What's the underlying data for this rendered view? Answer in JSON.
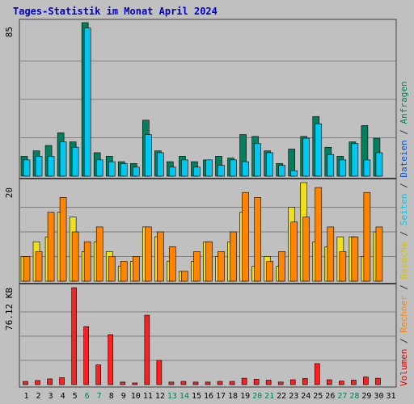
{
  "chart_data": {
    "type": "bar",
    "title": "Tages-Statistik im Monat April 2024",
    "categories": [
      "1",
      "2",
      "3",
      "4",
      "5",
      "6",
      "7",
      "8",
      "9",
      "10",
      "11",
      "12",
      "13",
      "14",
      "15",
      "16",
      "17",
      "18",
      "19",
      "20",
      "21",
      "22",
      "23",
      "24",
      "25",
      "26",
      "27",
      "28",
      "29",
      "30",
      "31"
    ],
    "weekend_days": [
      "6",
      "7",
      "13",
      "14",
      "20",
      "21",
      "27",
      "28"
    ],
    "panels": [
      {
        "id": "top",
        "tick_label": "85",
        "ylim": [
          0,
          85
        ],
        "series": [
          {
            "name": "Anfragen",
            "color": "#00805c",
            "values": [
              11,
              14,
              17,
              24,
              19,
              85,
              13,
              11,
              8,
              7,
              31,
              14,
              8,
              11,
              8,
              9,
              11,
              10,
              23,
              22,
              14,
              7,
              15,
              22,
              33,
              16,
              11,
              19,
              28,
              21,
              0
            ]
          },
          {
            "name": "Dateien",
            "color": "#00c8f0",
            "values": [
              9,
              11,
              11,
              19,
              16,
              82,
              9,
              8,
              7,
              5,
              23,
              13,
              5,
              9,
              5,
              9,
              6,
              9,
              8,
              18,
              13,
              6,
              3,
              21,
              29,
              12,
              9,
              18,
              9,
              13,
              0
            ]
          }
        ]
      },
      {
        "id": "mid",
        "tick_label": "20",
        "ylim": [
          0,
          20
        ],
        "series": [
          {
            "name": "Seiten",
            "color": "#f0e01c",
            "values": [
              5,
              8,
              9,
              14,
              13,
              6,
              8,
              6,
              3,
              4,
              11,
              9,
              4,
              2,
              4,
              8,
              5,
              8,
              14,
              3,
              5,
              3,
              15,
              20,
              8,
              7,
              9,
              9,
              5,
              10,
              0
            ]
          },
          {
            "name": "Besuche",
            "color": "#ff8400",
            "values": [
              5,
              6,
              14,
              17,
              10,
              8,
              11,
              5,
              4,
              5,
              11,
              10,
              7,
              2,
              6,
              8,
              6,
              10,
              18,
              17,
              4,
              6,
              12,
              13,
              19,
              11,
              6,
              9,
              18,
              11,
              0
            ]
          }
        ]
      },
      {
        "id": "bottom",
        "tick_label": "76.12 KB",
        "ylim": [
          0,
          76.12
        ],
        "series": [
          {
            "name": "Volumen",
            "color": "#ff1f1f",
            "values": [
              2.5,
              3.2,
              4.5,
              5.5,
              76.1,
              45.5,
              15.5,
              39.2,
              2.0,
              1.3,
              54.5,
              19.0,
              2.0,
              2.5,
              2.0,
              2.0,
              2.5,
              2.5,
              5.0,
              4.2,
              3.5,
              2.0,
              3.8,
              4.8,
              16.5,
              3.8,
              2.8,
              3.5,
              6.0,
              5.0,
              0
            ]
          }
        ]
      }
    ],
    "right_legend": [
      {
        "text": "Volumen",
        "color": "#e00000"
      },
      {
        "text": " / ",
        "color": "#333333"
      },
      {
        "text": "Rechner",
        "color": "#ff8400"
      },
      {
        "text": " / ",
        "color": "#333333"
      },
      {
        "text": "Besuche",
        "color": "#d8c000"
      },
      {
        "text": " / ",
        "color": "#333333"
      },
      {
        "text": "Seiten",
        "color": "#00c8f0"
      },
      {
        "text": " / ",
        "color": "#333333"
      },
      {
        "text": "Dateien",
        "color": "#0050e0"
      },
      {
        "text": " / ",
        "color": "#333333"
      },
      {
        "text": "Anfragen",
        "color": "#00805c"
      }
    ],
    "colors": {
      "background": "#c0c0c0",
      "title": "#0000c8",
      "gridline": "#808080",
      "weekday_label": "#000000",
      "weekend_label": "#00805c",
      "separator": "#404040"
    },
    "grid": true
  }
}
